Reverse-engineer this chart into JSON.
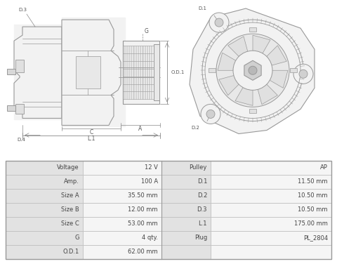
{
  "table_rows": [
    [
      "Voltage",
      "12 V",
      "Pulley",
      "AP"
    ],
    [
      "Amp.",
      "100 A",
      "D.1",
      "11.50 mm"
    ],
    [
      "Size A",
      "35.50 mm",
      "D.2",
      "10.50 mm"
    ],
    [
      "Size B",
      "12.00 mm",
      "D.3",
      "10.50 mm"
    ],
    [
      "Size C",
      "53.00 mm",
      "L.1",
      "175.00 mm"
    ],
    [
      "G",
      "4 qty.",
      "Plug",
      "PL_2804"
    ],
    [
      "O.D.1",
      "62.00 mm",
      "",
      ""
    ]
  ],
  "bg_color": "#ffffff",
  "line_color": "#999999",
  "fill_color": "#f2f2f2",
  "fill_color2": "#e8e8e8",
  "text_color": "#555555",
  "dim_color": "#888888",
  "table_label_bg": "#e2e2e2",
  "table_value_bg": "#f5f5f5",
  "table_border": "#bbbbbb"
}
